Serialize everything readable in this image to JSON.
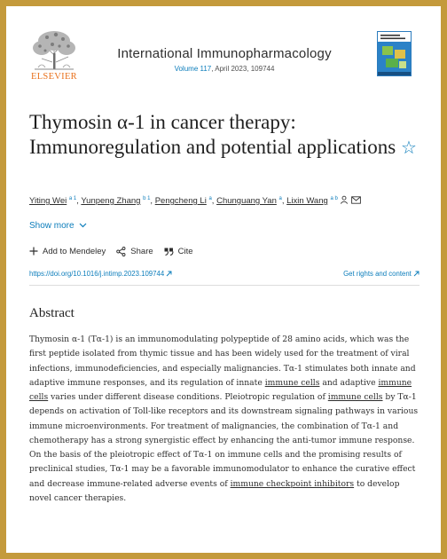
{
  "publisher": {
    "name": "ELSEVIER"
  },
  "journal": {
    "title": "International Immunopharmacology",
    "volume": "Volume 117",
    "issue_info": ", April 2023, 109744",
    "cover_color": "#1f78c1"
  },
  "article": {
    "title": "Thymosin α-1 in cancer therapy: Immunoregulation and potential applications",
    "star_icon": "star-outline-icon",
    "authors": [
      {
        "name": "Yiting Wei",
        "aff": "a 1"
      },
      {
        "name": "Yunpeng Zhang",
        "aff": "b 1"
      },
      {
        "name": "Pengcheng Li",
        "aff": "a"
      },
      {
        "name": "Chunguang Yan",
        "aff": "a"
      },
      {
        "name": "Lixin Wang",
        "aff": "a b"
      }
    ],
    "separators": [
      ",",
      ",",
      ",",
      ","
    ],
    "show_more": "Show more"
  },
  "actions": {
    "mendeley": "Add to Mendeley",
    "share": "Share",
    "cite": "Cite"
  },
  "links": {
    "doi": "https://doi.org/10.1016/j.intimp.2023.109744",
    "rights": "Get rights and content"
  },
  "abstract": {
    "heading": "Abstract",
    "segments": [
      "Thymosin α-1 (Tα-1) is an immunomodulating polypeptide of 28 amino acids, which was the first peptide isolated from thymic tissue and has been widely used for the treatment of viral infections, immunodeficiencies, and especially malignancies. Tα-1 stimulates both innate and adaptive immune responses, and its regulation of innate ",
      "immune cells",
      " and adaptive ",
      "immune cells",
      " varies under different disease conditions. Pleiotropic regulation of ",
      "immune cells",
      " by Tα-1 depends on activation of Toll-like receptors and its downstream signaling pathways in various immune microenvironments. For treatment of malignancies, the combination of Tα-1 and chemotherapy has a strong synergistic effect by enhancing the anti-tumor immune response. On the basis of the pleiotropic effect of Tα-1 on immune cells and the promising results of preclinical studies, Tα-1 may be a favorable immunomodulator to enhance the curative effect and decrease immune-related adverse events of ",
      "immune checkpoint inhibitors",
      " to develop novel cancer therapies."
    ]
  },
  "colors": {
    "frame": "#c49a3c",
    "link": "#0c7dbb",
    "elsevier_orange": "#e9711c"
  }
}
